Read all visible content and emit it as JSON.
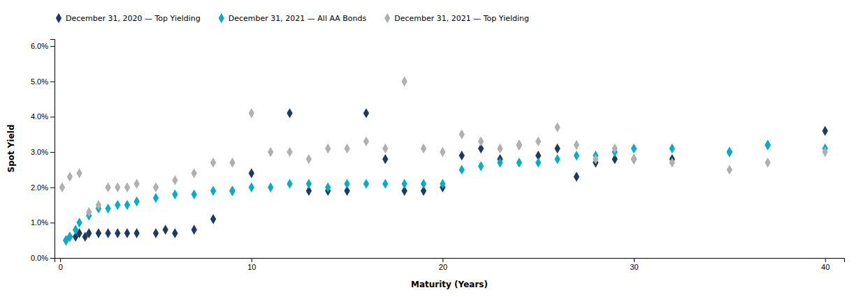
{
  "chart_data": {
    "type": "scatter",
    "xlabel": "Maturity (Years)",
    "ylabel": "Spot Yield",
    "marker": "diamond",
    "grid": false,
    "legend": "upper left",
    "xlim": [
      -0.3,
      41
    ],
    "ylim": [
      0,
      0.062
    ],
    "xticks": [
      0,
      10,
      20,
      30,
      40
    ],
    "yticks": [
      {
        "value": 0.0,
        "label": "0.0%"
      },
      {
        "value": 0.01,
        "label": "1.0%"
      },
      {
        "value": 0.02,
        "label": "2.0%"
      },
      {
        "value": 0.03,
        "label": "3.0%"
      },
      {
        "value": 0.04,
        "label": "4.0%"
      },
      {
        "value": 0.05,
        "label": "5.0%"
      },
      {
        "value": 0.06,
        "label": "6.0%"
      }
    ],
    "series": [
      {
        "name": "December 31, 2020 — Top Yielding",
        "color": "#1e3a5f",
        "x": [
          0.3,
          0.5,
          0.8,
          1,
          1.3,
          1.5,
          2,
          2.5,
          3,
          3.5,
          4,
          5,
          5.5,
          6,
          7,
          8,
          9,
          10,
          12,
          13,
          14,
          15,
          16,
          17,
          18,
          19,
          20,
          21,
          22,
          23,
          24,
          25,
          26,
          27,
          28,
          29,
          30,
          32,
          35,
          37,
          40
        ],
        "values": [
          0.005,
          0.006,
          0.006,
          0.007,
          0.006,
          0.007,
          0.007,
          0.007,
          0.007,
          0.007,
          0.007,
          0.007,
          0.008,
          0.007,
          0.008,
          0.011,
          0.019,
          0.024,
          0.041,
          0.019,
          0.019,
          0.019,
          0.041,
          0.028,
          0.019,
          0.019,
          0.02,
          0.029,
          0.031,
          0.028,
          0.032,
          0.029,
          0.031,
          0.023,
          0.027,
          0.028,
          0.028,
          0.028,
          0.03,
          0.032,
          0.036
        ]
      },
      {
        "name": "December 31, 2021 — All AA Bonds",
        "color": "#00b0c8",
        "x": [
          0.3,
          0.5,
          0.8,
          1,
          1.5,
          2,
          2.5,
          3,
          3.5,
          4,
          5,
          6,
          7,
          8,
          9,
          10,
          11,
          12,
          13,
          14,
          15,
          16,
          17,
          18,
          19,
          20,
          21,
          22,
          23,
          24,
          25,
          26,
          27,
          28,
          29,
          30,
          32,
          35,
          37,
          40
        ],
        "values": [
          0.005,
          0.006,
          0.008,
          0.01,
          0.012,
          0.014,
          0.014,
          0.015,
          0.015,
          0.016,
          0.017,
          0.018,
          0.018,
          0.019,
          0.019,
          0.02,
          0.02,
          0.021,
          0.021,
          0.02,
          0.021,
          0.021,
          0.021,
          0.021,
          0.021,
          0.021,
          0.025,
          0.026,
          0.027,
          0.027,
          0.027,
          0.028,
          0.029,
          0.029,
          0.03,
          0.031,
          0.031,
          0.03,
          0.032,
          0.031
        ]
      },
      {
        "name": "December 31, 2021 — Top Yielding",
        "color": "#b0b0b0",
        "x": [
          0.1,
          0.5,
          1,
          1.5,
          2,
          2.5,
          3,
          3.5,
          4,
          5,
          6,
          7,
          8,
          9,
          10,
          11,
          12,
          13,
          14,
          15,
          16,
          17,
          18,
          19,
          20,
          21,
          22,
          23,
          24,
          25,
          26,
          27,
          28,
          29,
          30,
          32,
          35,
          37,
          40
        ],
        "values": [
          0.02,
          0.023,
          0.024,
          0.013,
          0.015,
          0.02,
          0.02,
          0.02,
          0.021,
          0.02,
          0.022,
          0.024,
          0.027,
          0.027,
          0.041,
          0.03,
          0.03,
          0.028,
          0.031,
          0.031,
          0.033,
          0.031,
          0.05,
          0.031,
          0.03,
          0.035,
          0.033,
          0.031,
          0.032,
          0.033,
          0.037,
          0.032,
          0.028,
          0.031,
          0.028,
          0.027,
          0.025,
          0.027,
          0.03
        ]
      }
    ]
  }
}
